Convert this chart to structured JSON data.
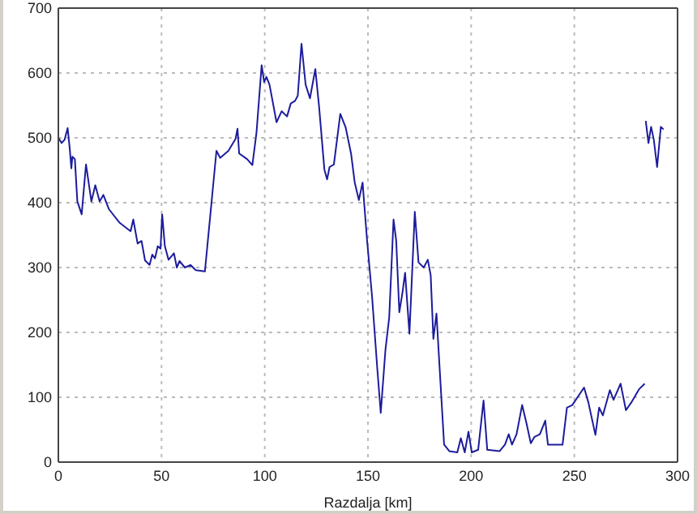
{
  "chart_data": {
    "type": "line",
    "xlabel": "Razdalja [km]",
    "xlim": [
      0,
      300
    ],
    "xticks": [
      0,
      50,
      100,
      150,
      200,
      250,
      300
    ],
    "ylim": [
      0,
      700
    ],
    "yticks": [
      0,
      100,
      200,
      300,
      400,
      500,
      600,
      700
    ],
    "grid": true,
    "line_style": "solid",
    "marker": "none",
    "series": [
      {
        "color": "#1c1c9c",
        "x": [
          0,
          1.6,
          3,
          4.5,
          5.5,
          6.3,
          6.8,
          8,
          9.2,
          11.3,
          13.4,
          16,
          17.9,
          20,
          21.8,
          24.5,
          29.7,
          35,
          36.3,
          38.4,
          40.3,
          42,
          44.2,
          45.5,
          46.8,
          48.2,
          49.5,
          50.3,
          51.6,
          53.4,
          56,
          57.4,
          58.7,
          61.3,
          64,
          66.6,
          71,
          74.5,
          76.6,
          78.4,
          82.4,
          85.8,
          86.8,
          87.6,
          91.5,
          94,
          96,
          98.5,
          99.7,
          100.8,
          102.3,
          105.7,
          108.2,
          110.8,
          112.6,
          114.7,
          116,
          117.8,
          119.8,
          121.9,
          124.5,
          126.3,
          128.9,
          130.2,
          131.4,
          133.5,
          136.6,
          139.2,
          141.8,
          143.6,
          145.6,
          147.4,
          149.5,
          152,
          154.6,
          156.2,
          158.5,
          160.3,
          162.4,
          163.7,
          165.2,
          166.8,
          168,
          170.1,
          172.7,
          174.5,
          177,
          179,
          180.4,
          181.7,
          183.2,
          184.8,
          186.9,
          189.4,
          193.3,
          195,
          196.9,
          198.7,
          200.3,
          203.4,
          206,
          207.8,
          213.8,
          216.4,
          218.2,
          219.8,
          222,
          224.7,
          226.8,
          228.9,
          230.7,
          233.3,
          235.9,
          237.2,
          244.3,
          246.4,
          249,
          254.7,
          256.8,
          260.2,
          262,
          263.8,
          267.2,
          269,
          272.4,
          275,
          277.6,
          281.5,
          284.1,
          284.3,
          284.6,
          285.9,
          287.2,
          288.5,
          290.1,
          291.9,
          293.2
        ],
        "values": [
          500,
          492,
          497,
          515,
          484,
          453,
          471,
          467,
          402,
          382,
          459,
          402,
          427,
          402,
          412,
          390,
          369,
          356,
          374,
          337,
          341,
          311,
          304,
          320,
          314,
          333,
          329,
          382,
          333,
          312,
          322,
          300,
          310,
          300,
          304,
          296,
          294,
          410,
          480,
          469,
          480,
          498,
          514,
          476,
          467,
          458,
          508,
          612,
          586,
          594,
          582,
          524,
          541,
          533,
          553,
          557,
          565,
          645,
          582,
          561,
          606,
          549,
          451,
          436,
          455,
          459,
          537,
          516,
          476,
          431,
          404,
          431,
          345,
          255,
          141,
          76,
          174,
          223,
          374,
          341,
          231,
          263,
          292,
          198,
          386,
          308,
          300,
          312,
          288,
          190,
          229,
          141,
          27,
          17,
          15,
          37,
          15,
          47,
          15,
          19,
          95,
          19,
          17,
          27,
          43,
          27,
          43,
          88,
          60,
          29,
          39,
          43,
          64,
          27,
          27,
          84,
          88,
          115,
          92,
          42,
          84,
          72,
          111,
          96,
          121,
          80,
          92,
          113,
          121,
          null,
          526,
          492,
          517,
          497,
          455,
          517,
          513
        ]
      }
    ]
  }
}
